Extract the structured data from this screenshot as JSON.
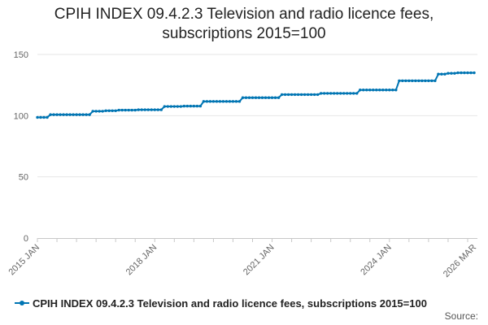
{
  "chart_data": {
    "type": "line",
    "title": "CPIH INDEX 09.4.2.3 Television and radio licence fees, subscriptions 2015=100",
    "title_lines": [
      "CPIH INDEX 09.4.2.3 Television and radio licence fees,",
      "subscriptions 2015=100"
    ],
    "xlabel": "",
    "ylabel": "",
    "ylim": [
      0,
      150
    ],
    "yticks": [
      0,
      50,
      100,
      150
    ],
    "xlim": [
      "2015-01",
      "2026-03"
    ],
    "xtick_labels": [
      {
        "label": "2015 JAN",
        "date": "2015-01"
      },
      {
        "label": "2018 JAN",
        "date": "2018-01"
      },
      {
        "label": "2021 JAN",
        "date": "2021-01"
      },
      {
        "label": "2024 JAN",
        "date": "2024-01"
      },
      {
        "label": "2026 MAR",
        "date": "2026-03"
      }
    ],
    "grid": true,
    "legend_position": "bottom-left",
    "series": [
      {
        "name": "CPIH INDEX 09.4.2.3 Television and radio licence fees, subscriptions 2015=100",
        "color": "#0075b3",
        "steps": [
          {
            "from": "2015-01",
            "value": 98.6
          },
          {
            "from": "2015-05",
            "value": 100.8
          },
          {
            "from": "2016-06",
            "value": 103.6
          },
          {
            "from": "2016-10",
            "value": 104.0
          },
          {
            "from": "2017-02",
            "value": 104.5
          },
          {
            "from": "2017-08",
            "value": 104.8
          },
          {
            "from": "2018-04",
            "value": 107.5
          },
          {
            "from": "2018-10",
            "value": 107.8
          },
          {
            "from": "2019-04",
            "value": 111.6
          },
          {
            "from": "2020-04",
            "value": 114.7
          },
          {
            "from": "2021-04",
            "value": 117.2
          },
          {
            "from": "2022-04",
            "value": 118.2
          },
          {
            "from": "2023-04",
            "value": 121.0
          },
          {
            "from": "2024-04",
            "value": 128.5
          },
          {
            "from": "2025-04",
            "value": 133.9
          },
          {
            "from": "2025-07",
            "value": 134.6
          },
          {
            "from": "2025-10",
            "value": 135.0
          }
        ]
      }
    ]
  },
  "source_label": "Source:"
}
